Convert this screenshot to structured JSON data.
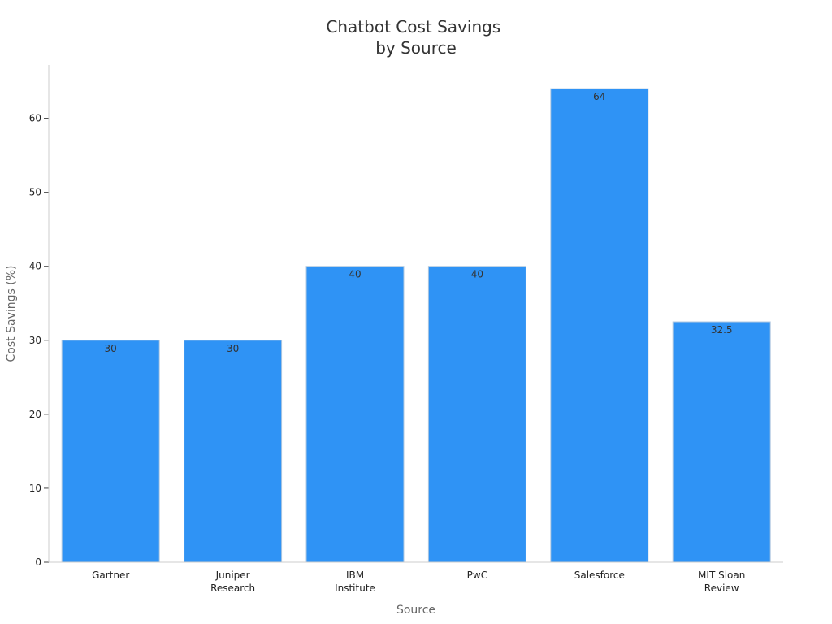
{
  "chart_data": {
    "type": "bar",
    "title": [
      "Chatbot Cost Savings",
      "by Source"
    ],
    "xlabel": "Source",
    "ylabel": "Cost Savings (%)",
    "categories": [
      [
        "Gartner"
      ],
      [
        "Juniper",
        "Research"
      ],
      [
        "IBM",
        "Institute"
      ],
      [
        "PwC"
      ],
      [
        "Salesforce"
      ],
      [
        "MIT Sloan",
        "Review"
      ]
    ],
    "values": [
      30,
      30,
      40,
      40,
      64,
      32.5
    ],
    "value_labels": [
      "30",
      "30",
      "40",
      "40",
      "64",
      "32.5"
    ],
    "yticks": [
      0,
      10,
      20,
      30,
      40,
      50,
      60
    ],
    "ylim": [
      0,
      67.2
    ],
    "bar_color": "#2f93f5",
    "grid": false,
    "legend": "none"
  }
}
